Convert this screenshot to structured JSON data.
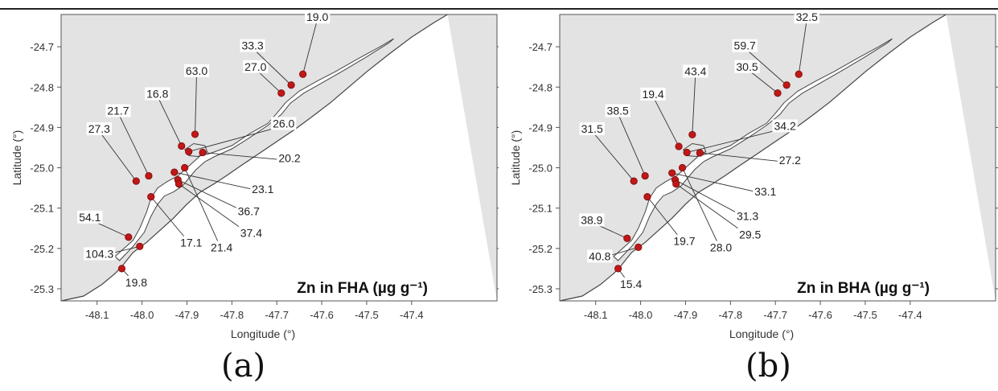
{
  "colors": {
    "land": "#e3e3e3",
    "coast": "#444444",
    "station": "#c01818",
    "station_edge": "#7a0808",
    "leader": "#333333"
  },
  "panels": [
    {
      "id": "a",
      "caption": "(a)",
      "title": "Zn in FHA (µg g⁻¹)",
      "xlabel": "Longitude (°)",
      "ylabel": "Latitude (°)",
      "xticks": [
        "-48.1",
        "-48.0",
        "-47.9",
        "-47.8",
        "-47.7",
        "-47.6",
        "-47.5",
        "-47.4"
      ],
      "yticks": [
        "-24.7",
        "-24.8",
        "-24.9",
        "-25.0",
        "-25.1",
        "-25.2",
        "-25.3"
      ],
      "stations": [
        {
          "lon": -48.045,
          "lat": -25.25,
          "value": "19.8"
        },
        {
          "lon": -48.03,
          "lat": -25.172,
          "value": "54.1"
        },
        {
          "lon": -48.005,
          "lat": -25.195,
          "value": "104.3"
        },
        {
          "lon": -48.013,
          "lat": -25.033,
          "value": "27.3"
        },
        {
          "lon": -47.985,
          "lat": -25.02,
          "value": "21.7"
        },
        {
          "lon": -47.98,
          "lat": -25.072,
          "value": "17.1"
        },
        {
          "lon": -47.928,
          "lat": -25.011,
          "value": "23.1"
        },
        {
          "lon": -47.92,
          "lat": -25.03,
          "value": "36.7"
        },
        {
          "lon": -47.918,
          "lat": -25.04,
          "value": "37.4"
        },
        {
          "lon": -47.905,
          "lat": -25.0,
          "value": "21.4"
        },
        {
          "lon": -47.912,
          "lat": -24.946,
          "value": "16.8"
        },
        {
          "lon": -47.896,
          "lat": -24.96,
          "value": "26.0"
        },
        {
          "lon": -47.865,
          "lat": -24.962,
          "value": "20.2"
        },
        {
          "lon": -47.882,
          "lat": -24.917,
          "value": "63.0"
        },
        {
          "lon": -47.69,
          "lat": -24.815,
          "value": "27.0"
        },
        {
          "lon": -47.668,
          "lat": -24.795,
          "value": "33.3"
        },
        {
          "lon": -47.642,
          "lat": -24.768,
          "value": "19.0"
        }
      ]
    },
    {
      "id": "b",
      "caption": "(b)",
      "title": "Zn in BHA (µg g⁻¹)",
      "xlabel": "Longitude (°)",
      "ylabel": "Latitude (°)",
      "xticks": [
        "-48.1",
        "-48.0",
        "-47.9",
        "-47.8",
        "-47.7",
        "-47.6",
        "-47.5",
        "-47.4"
      ],
      "yticks": [
        "-24.7",
        "-24.8",
        "-24.9",
        "-25.0",
        "-25.1",
        "-25.2",
        "-25.3"
      ],
      "stations": [
        {
          "lon": -48.05,
          "lat": -25.25,
          "value": "15.4"
        },
        {
          "lon": -48.03,
          "lat": -25.175,
          "value": "38.9"
        },
        {
          "lon": -48.005,
          "lat": -25.197,
          "value": "40.8"
        },
        {
          "lon": -48.015,
          "lat": -25.033,
          "value": "31.5"
        },
        {
          "lon": -47.99,
          "lat": -25.02,
          "value": "38.5"
        },
        {
          "lon": -47.985,
          "lat": -25.072,
          "value": "19.7"
        },
        {
          "lon": -47.93,
          "lat": -25.013,
          "value": "33.1"
        },
        {
          "lon": -47.923,
          "lat": -25.03,
          "value": "31.3"
        },
        {
          "lon": -47.921,
          "lat": -25.04,
          "value": "29.5"
        },
        {
          "lon": -47.907,
          "lat": -25.0,
          "value": "28.0"
        },
        {
          "lon": -47.915,
          "lat": -24.947,
          "value": "19.4"
        },
        {
          "lon": -47.897,
          "lat": -24.962,
          "value": "34.2"
        },
        {
          "lon": -47.868,
          "lat": -24.963,
          "value": "27.2"
        },
        {
          "lon": -47.885,
          "lat": -24.918,
          "value": "43.4"
        },
        {
          "lon": -47.695,
          "lat": -24.815,
          "value": "30.5"
        },
        {
          "lon": -47.675,
          "lat": -24.795,
          "value": "59.7"
        },
        {
          "lon": -47.648,
          "lat": -24.768,
          "value": "32.5"
        }
      ]
    }
  ]
}
